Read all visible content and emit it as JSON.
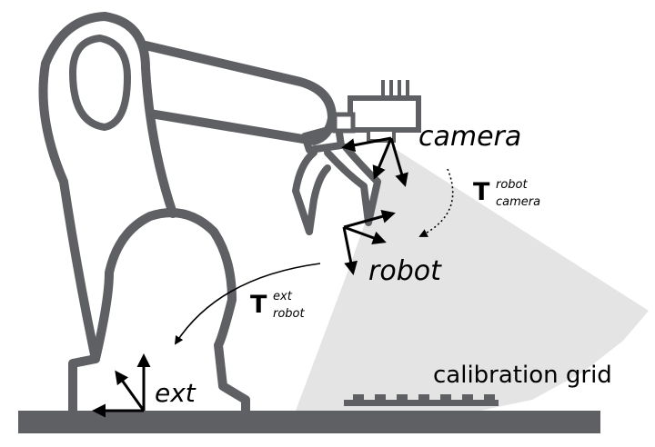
{
  "labels": {
    "camera": "camera",
    "robot": "robot",
    "ext": "ext",
    "calibration_grid": "calibration grid"
  },
  "transforms": {
    "robot_camera": {
      "symbol": "T",
      "sup": "robot",
      "sub": "camera"
    },
    "ext_robot": {
      "symbol": "T",
      "sup": "ext",
      "sub": "robot"
    }
  },
  "colors": {
    "robot_outline": "#5f6063",
    "ground": "#5f6063",
    "camera_fov": "#e4e4e4",
    "arrows": "#000000"
  }
}
